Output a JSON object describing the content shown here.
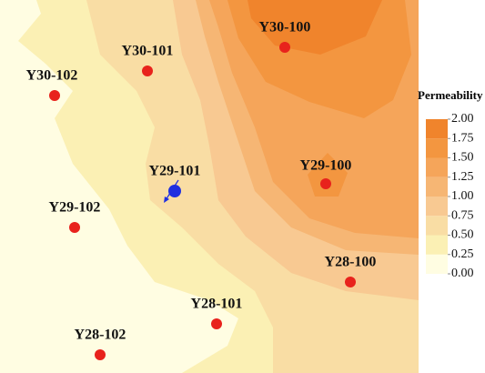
{
  "chart_data": {
    "type": "contour",
    "colorbar_title": "Permeability",
    "clim": [
      0,
      2
    ],
    "colorbar_ticks": [
      {
        "value": 0,
        "label": "0.00"
      },
      {
        "value": 0.25,
        "label": "0.25"
      },
      {
        "value": 0.5,
        "label": "0.50"
      },
      {
        "value": 0.75,
        "label": "0.75"
      },
      {
        "value": 1,
        "label": "1.00"
      },
      {
        "value": 1.25,
        "label": "1.25"
      },
      {
        "value": 1.5,
        "label": "1.50"
      },
      {
        "value": 1.75,
        "label": "1.75"
      },
      {
        "value": 2,
        "label": "2.00"
      }
    ],
    "colors": [
      "#fffde2",
      "#fbf0b4",
      "#f9dda4",
      "#f8c992",
      "#f6b674",
      "#f5a55a",
      "#f39640",
      "#f0842c"
    ],
    "wells": [
      {
        "name": "Y30-100",
        "color": "#e8221c"
      },
      {
        "name": "Y30-101",
        "color": "#e8221c"
      },
      {
        "name": "Y30-102",
        "color": "#e8221c"
      },
      {
        "name": "Y29-101",
        "color": "#1f2fe0"
      },
      {
        "name": "Y29-100",
        "color": "#e8221c"
      },
      {
        "name": "Y29-102",
        "color": "#e8221c"
      },
      {
        "name": "Y28-100",
        "color": "#e8221c"
      },
      {
        "name": "Y28-101",
        "color": "#e8221c"
      },
      {
        "name": "Y28-102",
        "color": "#e8221c"
      }
    ]
  }
}
